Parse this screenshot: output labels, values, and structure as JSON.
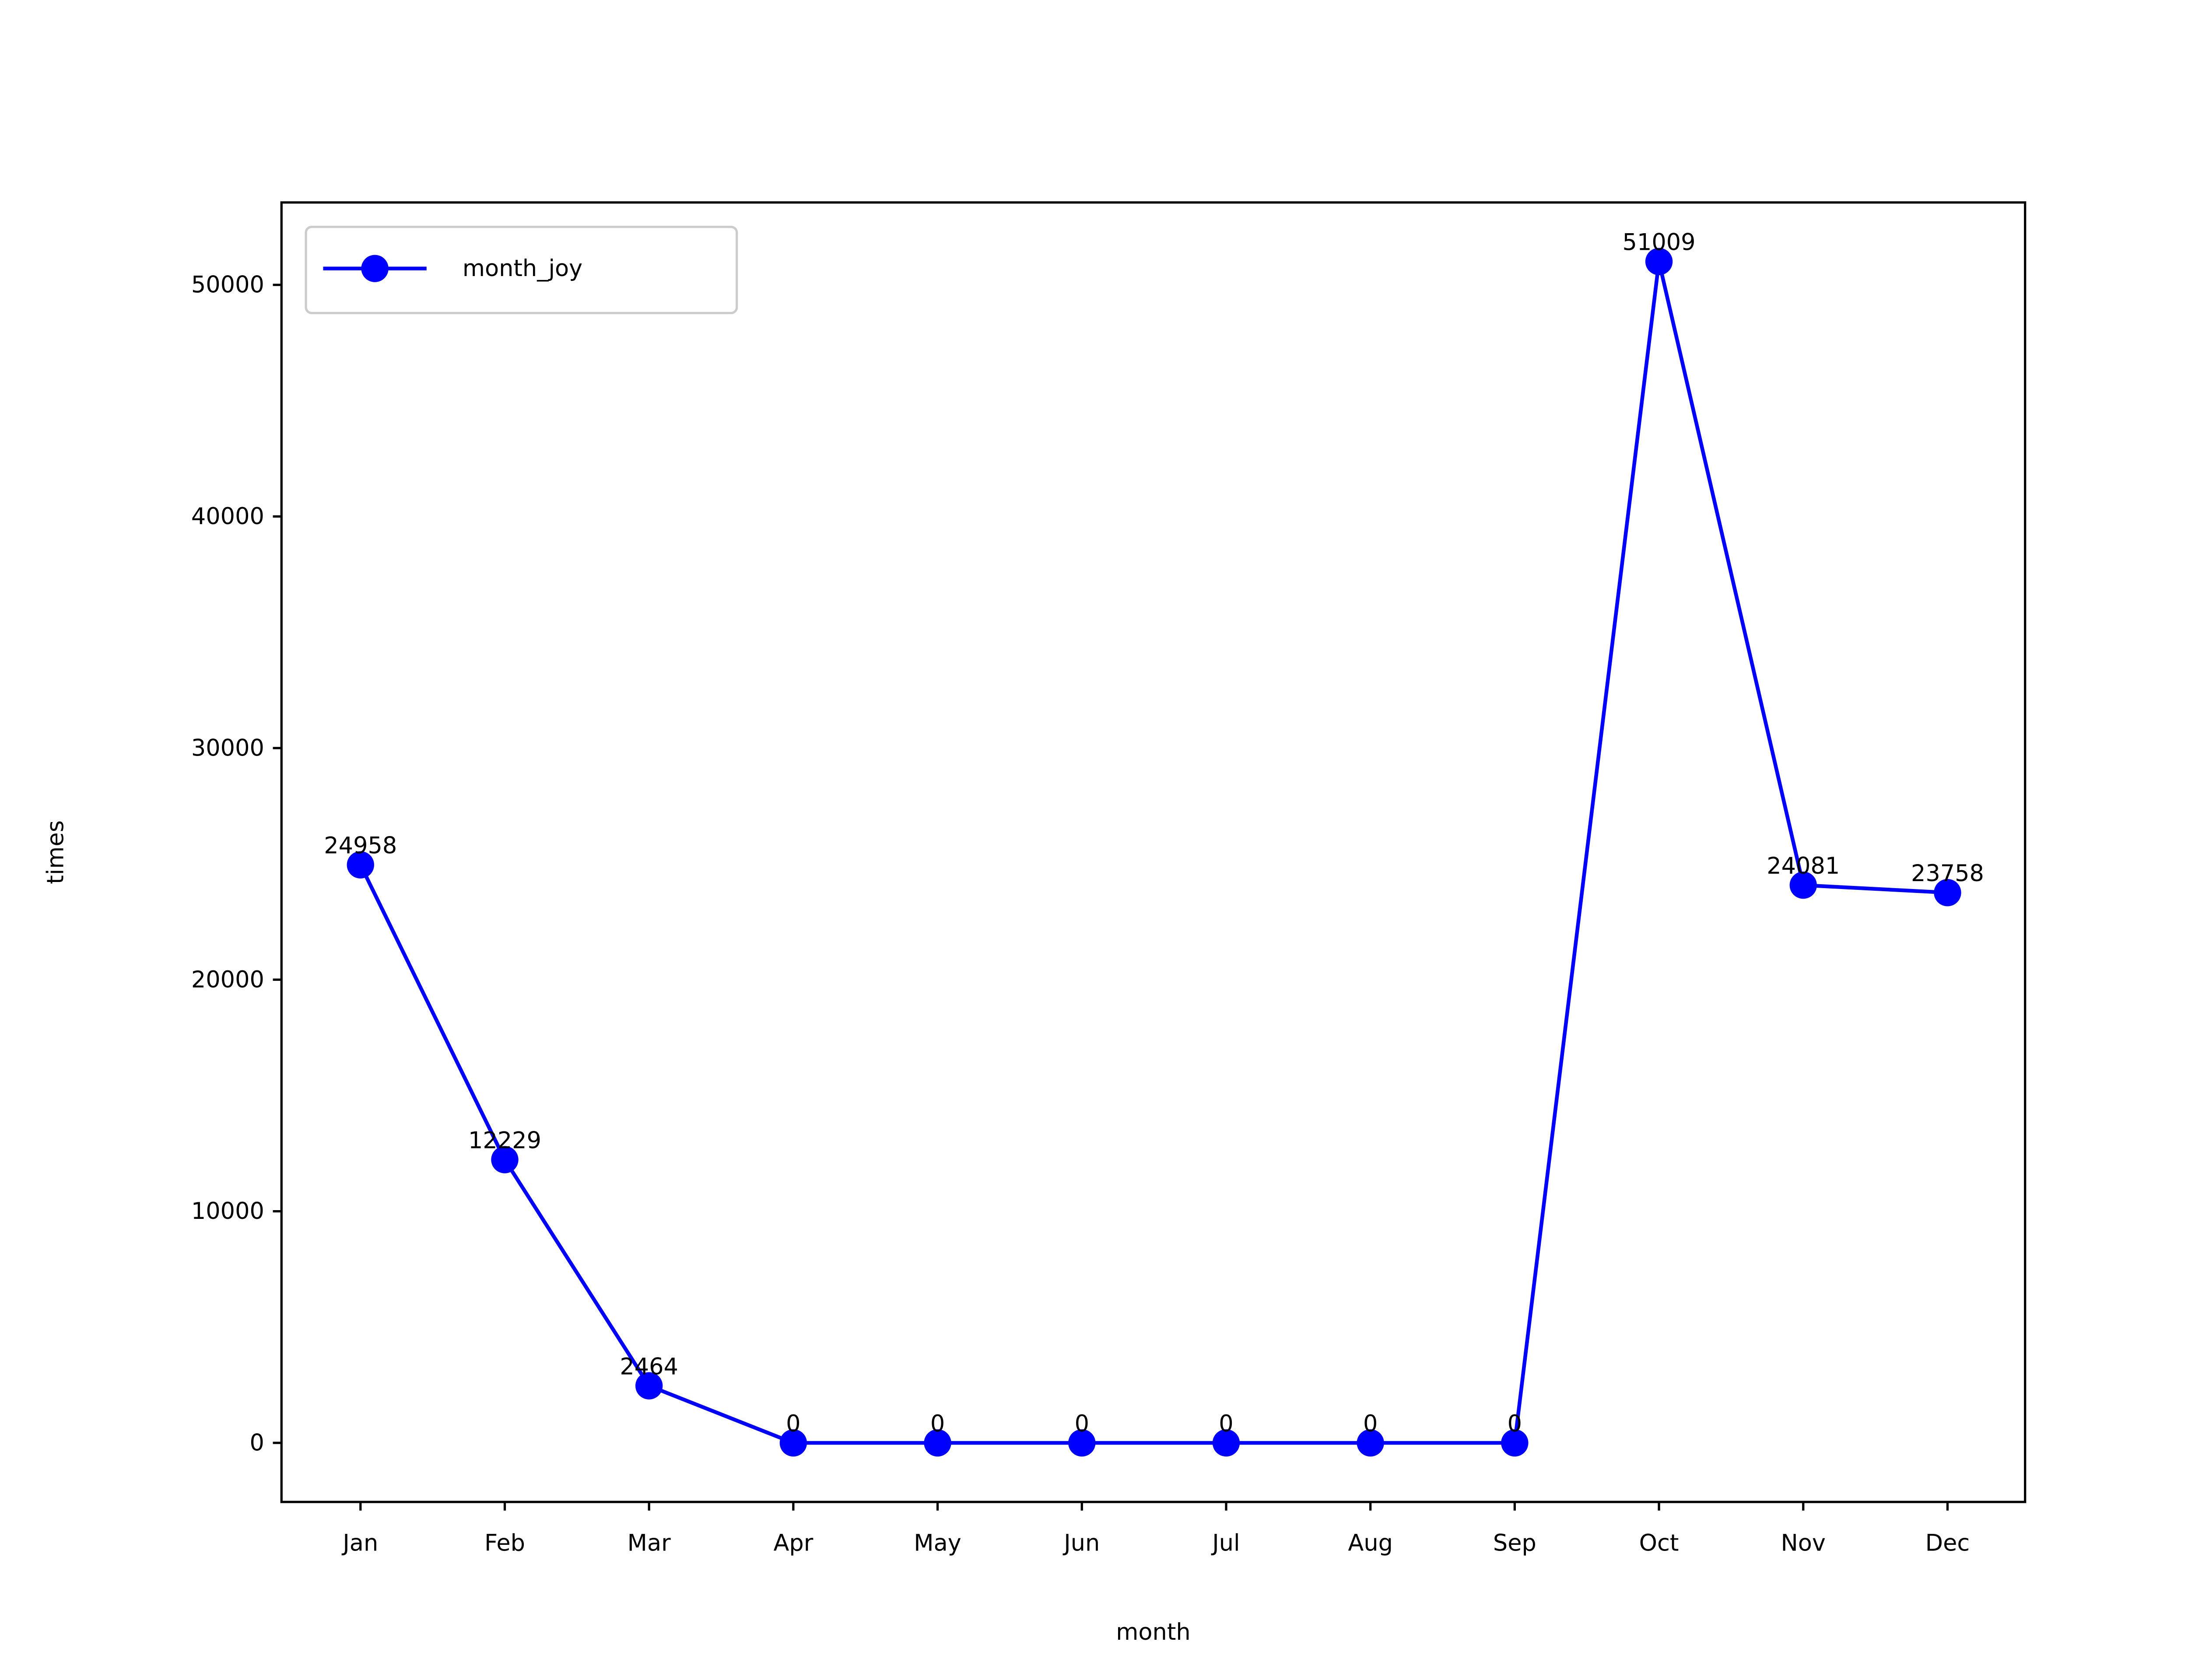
{
  "chart_data": {
    "type": "line",
    "title": "",
    "xlabel": "month",
    "ylabel": "times",
    "categories": [
      "Jan",
      "Feb",
      "Mar",
      "Apr",
      "May",
      "Jun",
      "Jul",
      "Aug",
      "Sep",
      "Oct",
      "Nov",
      "Dec"
    ],
    "series": [
      {
        "name": "month_joy",
        "color": "#0000ff",
        "marker": "circle",
        "values": [
          24958,
          12229,
          2464,
          0,
          0,
          0,
          0,
          0,
          0,
          51009,
          24081,
          23758
        ]
      }
    ],
    "ylim": [
      -2550,
      53559
    ],
    "yticks": [
      0,
      10000,
      20000,
      30000,
      40000,
      50000
    ],
    "grid": false,
    "legend_position": "upper-left",
    "data_labels": true
  }
}
